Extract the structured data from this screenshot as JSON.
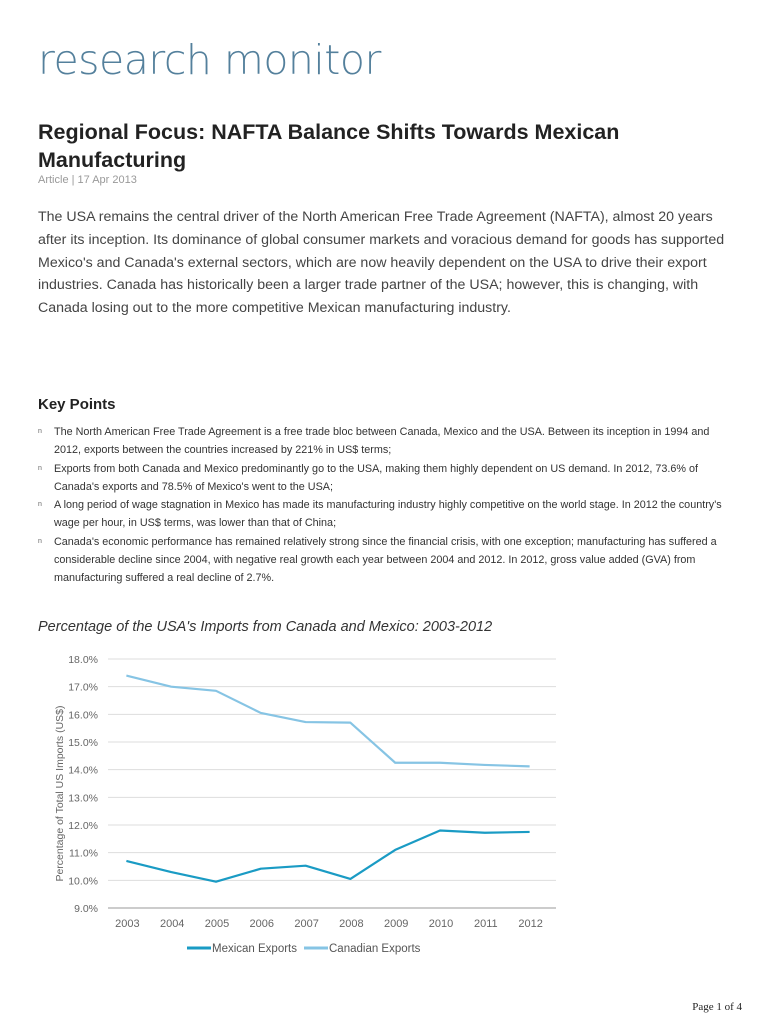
{
  "header": {
    "logo": "research monitor"
  },
  "article": {
    "title": "Regional Focus: NAFTA Balance Shifts Towards Mexican Manufacturing",
    "meta": "Article | 17 Apr 2013",
    "intro": "The USA remains the central driver of the North American Free Trade Agreement (NAFTA), almost 20 years after its inception. Its dominance of global consumer markets and voracious demand for goods has supported Mexico's and Canada's external sectors, which are now heavily dependent on the USA to drive their export industries. Canada has historically been a larger trade partner of the USA; however, this is changing, with Canada losing out to the more competitive Mexican manufacturing industry.",
    "key_points_title": "Key Points",
    "key_points": [
      "The North American Free Trade Agreement is a free trade bloc between Canada, Mexico and the USA. Between its inception in 1994 and 2012, exports between the countries increased by 221% in US$ terms;",
      "Exports from both Canada and Mexico predominantly go to the USA, making them highly dependent on US demand. In 2012, 73.6% of Canada's exports and 78.5% of Mexico's went to the USA;",
      "A long period of wage stagnation in Mexico has made its manufacturing industry highly competitive on the world stage. In 2012 the country's wage per hour, in US$ terms, was lower than that of China;",
      "Canada's economic performance has remained relatively strong since the financial crisis, with one exception; manufacturing has suffered a considerable decline since 2004, with negative real growth each year between 2004 and 2012. In 2012, gross value added (GVA) from manufacturing suffered a real decline of 2.7%."
    ],
    "bullet": "n"
  },
  "chart_data": {
    "type": "line",
    "title": "Percentage of the USA's Imports from Canada and Mexico: 2003-2012",
    "xlabel": "",
    "ylabel": "Percentage of Total US Imports (US$)",
    "categories": [
      "2003",
      "2004",
      "2005",
      "2006",
      "2007",
      "2008",
      "2009",
      "2010",
      "2011",
      "2012"
    ],
    "ylim": [
      9,
      18
    ],
    "yticks": [
      "9.0%",
      "10.0%",
      "11.0%",
      "12.0%",
      "13.0%",
      "14.0%",
      "15.0%",
      "16.0%",
      "17.0%",
      "18.0%"
    ],
    "grid": true,
    "legend": "bottom",
    "series": [
      {
        "name": "Mexican Exports",
        "color": "#1a9bc4",
        "values": [
          10.7,
          10.3,
          9.95,
          10.42,
          10.53,
          10.05,
          11.1,
          11.8,
          11.72,
          11.75
        ]
      },
      {
        "name": "Canadian Exports",
        "color": "#86c4e4",
        "values": [
          17.4,
          17.0,
          16.85,
          16.05,
          15.72,
          15.7,
          14.25,
          14.25,
          14.17,
          14.12
        ]
      }
    ]
  },
  "footer": {
    "page": "Page 1 of 4"
  }
}
